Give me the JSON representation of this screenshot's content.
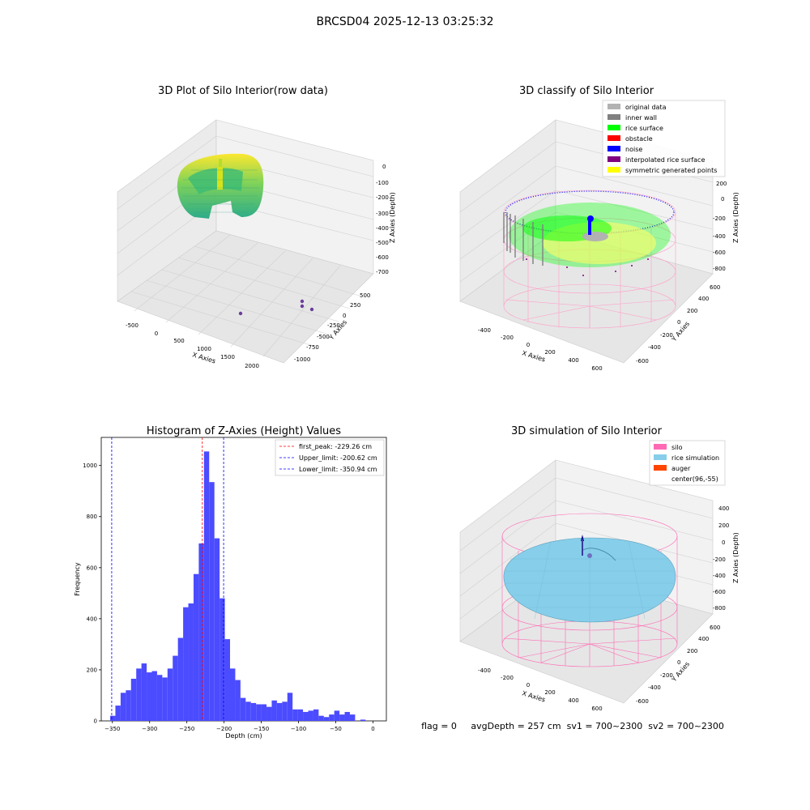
{
  "suptitle": "BRCSD04 2025-12-13 03:25:32",
  "status_text": "flag = 0     avgDepth = 257 cm  sv1 = 700~2300  sv2 = 700~2300",
  "chart_data": [
    {
      "type": "scatter",
      "kind": "3d",
      "title": "3D Plot of Silo Interior(row data)",
      "xlabel": "X Axies",
      "ylabel": "Y Axies",
      "zlabel": "Z Axies (Depth)",
      "xticks": [
        "-500",
        "0",
        "500",
        "1000",
        "1500",
        "2000"
      ],
      "yticks": [
        "500",
        "250",
        "0",
        "-250",
        "-500",
        "-750",
        "-1000"
      ],
      "zticks": [
        "0",
        "-100",
        "-200",
        "-300",
        "-400",
        "-500",
        "-600",
        "-700"
      ],
      "outlier_points": [
        {
          "x": 760,
          "y": -950,
          "z": -760
        },
        {
          "x": 1900,
          "y": -200,
          "z": -760
        },
        {
          "x": 1950,
          "y": -350,
          "z": -760
        },
        {
          "x": 2200,
          "y": -400,
          "z": -760
        }
      ],
      "colormap": "viridis",
      "legend": "none",
      "grid": true
    },
    {
      "type": "scatter",
      "kind": "3d",
      "title": "3D classify of Silo Interior",
      "xlabel": "X Axies",
      "ylabel": "Y Axies",
      "zlabel": "Z Axies (Depth)",
      "xticks": [
        "-400",
        "-200",
        "0",
        "200",
        "400",
        "600"
      ],
      "yticks": [
        "600",
        "400",
        "200",
        "0",
        "-200",
        "-400",
        "-600"
      ],
      "zticks": [
        "200",
        "0",
        "-200",
        "-400",
        "-600",
        "-800"
      ],
      "legend_placement": "upper right",
      "legend": [
        {
          "label": "original data",
          "color": "#b2b2b2"
        },
        {
          "label": "inner wall",
          "color": "#808080"
        },
        {
          "label": "rice surface",
          "color": "#00ff00"
        },
        {
          "label": "obstacle",
          "color": "#ff0000"
        },
        {
          "label": "noise",
          "color": "#0000ff"
        },
        {
          "label": "interpolated rice surface",
          "color": "#800080"
        },
        {
          "label": "symmetric generated points",
          "color": "#ffff00"
        }
      ],
      "grid": true
    },
    {
      "type": "bar",
      "kind": "histogram",
      "title": "Histogram of Z-Axies (Height) Values",
      "xlabel": "Depth (cm)",
      "ylabel": "Frequency",
      "xlim": [
        -365,
        18
      ],
      "ylim": [
        0,
        1110
      ],
      "xticks": [
        -350,
        -300,
        -250,
        -200,
        -150,
        -100,
        -50,
        0
      ],
      "yticks": [
        0,
        200,
        400,
        600,
        800,
        1000
      ],
      "bin_width": 7.0,
      "bin_start": -353,
      "counts": [
        20,
        60,
        110,
        120,
        165,
        205,
        225,
        190,
        195,
        180,
        170,
        205,
        255,
        325,
        445,
        460,
        575,
        695,
        1055,
        935,
        715,
        480,
        320,
        205,
        160,
        90,
        75,
        70,
        65,
        65,
        55,
        80,
        70,
        75,
        110,
        45,
        45,
        35,
        40,
        45,
        20,
        15,
        25,
        40,
        25,
        35,
        25,
        0,
        5
      ],
      "bar_color": "#4b4bff",
      "vlines": [
        {
          "label": "first_peak: -229.26 cm",
          "x": -229.26,
          "color": "#ff0000"
        },
        {
          "label": "Upper_limit: -200.62 cm",
          "x": -200.62,
          "color": "#0000ff"
        },
        {
          "label": "Lower_limit: -350.94 cm",
          "x": -350.94,
          "color": "#0000ff"
        }
      ],
      "legend_placement": "upper right",
      "grid": false
    },
    {
      "type": "scatter",
      "kind": "3d-surface",
      "title": "3D simulation of Silo Interior",
      "xlabel": "X Axies",
      "ylabel": "Y Axies",
      "zlabel": "Z Axies (Depth)",
      "xticks": [
        "-400",
        "-200",
        "0",
        "200",
        "400",
        "600"
      ],
      "yticks": [
        "600",
        "400",
        "200",
        "0",
        "-200",
        "-400",
        "-600"
      ],
      "zticks": [
        "400",
        "200",
        "0",
        "-200",
        "-400",
        "-600",
        "-800"
      ],
      "legend_placement": "upper right",
      "legend": [
        {
          "label": "silo",
          "color": "#ff69b4"
        },
        {
          "label": "rice simulation",
          "color": "#87ceeb"
        },
        {
          "label": "auger",
          "color": "#ff4500"
        },
        {
          "label": "center(96,-55)",
          "color": "none"
        }
      ],
      "grid": true
    }
  ]
}
